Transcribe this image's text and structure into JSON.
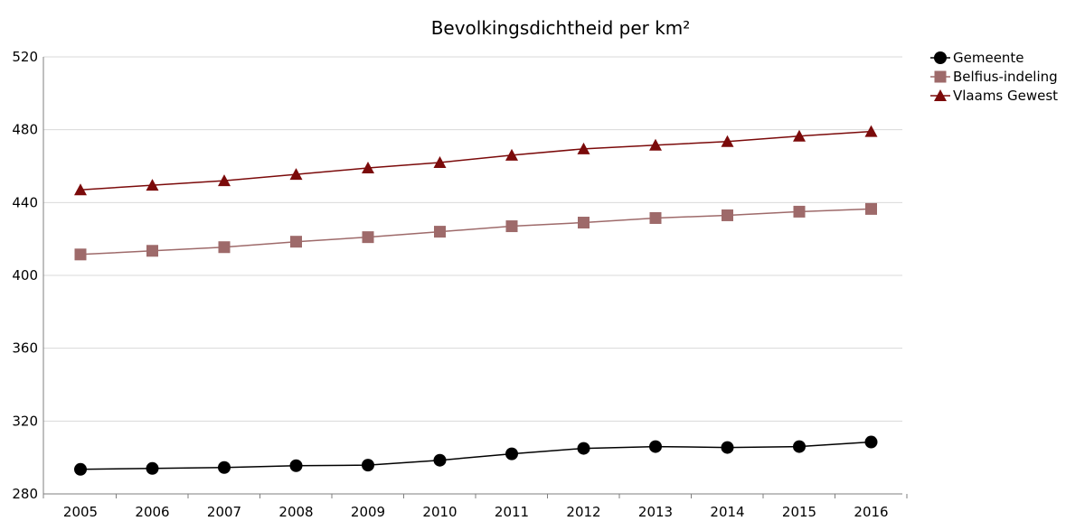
{
  "chart_data": {
    "type": "line",
    "title": "Bevolkingsdichtheid per km²",
    "xlabel": "",
    "ylabel": "",
    "x": [
      "2005",
      "2006",
      "2007",
      "2008",
      "2009",
      "2010",
      "2011",
      "2012",
      "2013",
      "2014",
      "2015",
      "2016"
    ],
    "ylim": [
      280,
      520
    ],
    "yticks": [
      "280",
      "320",
      "360",
      "400",
      "440",
      "480",
      "520"
    ],
    "grid": true,
    "legend_position": "top-right",
    "series": [
      {
        "name": "Gemeente",
        "marker": "circle",
        "color": "#000000",
        "values": [
          293.5,
          294,
          294.5,
          295.5,
          295.8,
          298.5,
          302,
          305,
          306,
          305.5,
          306,
          308.5
        ]
      },
      {
        "name": "Belfius-indeling",
        "marker": "square",
        "color": "#9e6a6a",
        "values": [
          411.5,
          413.5,
          415.5,
          418.5,
          421,
          424,
          427,
          429,
          431.5,
          433,
          435,
          436.5
        ]
      },
      {
        "name": "Vlaams Gewest",
        "marker": "triangle",
        "color": "#7b0a0a",
        "values": [
          447,
          449.5,
          452,
          455.5,
          459,
          462,
          466,
          469.5,
          471.5,
          473.5,
          476.5,
          479
        ]
      }
    ]
  }
}
